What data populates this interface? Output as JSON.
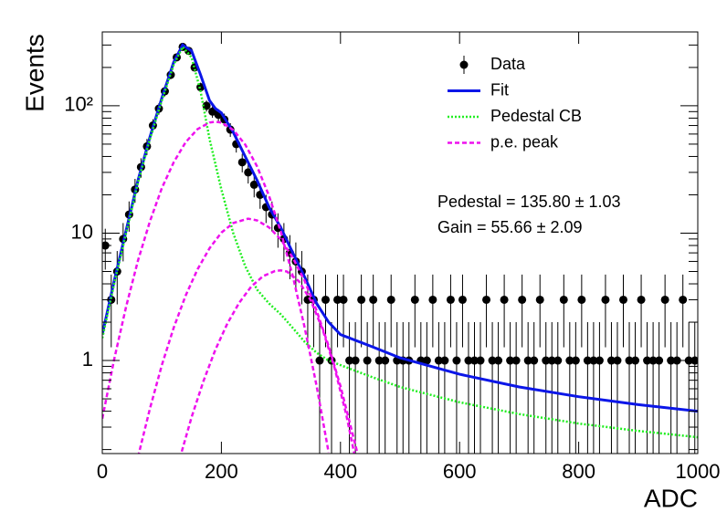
{
  "chart_data": {
    "type": "line",
    "x_label": "ADC",
    "y_label": "Events",
    "xlim": [
      0,
      1000
    ],
    "xticks": [
      0,
      200,
      400,
      600,
      800,
      1000
    ],
    "ylim": [
      0.186,
      380
    ],
    "log_y": true,
    "yticks": [
      1,
      10,
      {
        "value": 100,
        "label": "10²"
      }
    ],
    "yminorticks": [
      0.2,
      0.3,
      0.4,
      0.5,
      0.6,
      0.7,
      0.8,
      0.9,
      2,
      3,
      4,
      5,
      6,
      7,
      8,
      9,
      20,
      30,
      40,
      50,
      60,
      70,
      80,
      90,
      200,
      300
    ],
    "legend_position": "upper right",
    "annotations": [
      "Pedestal = 135.80 ± 1.03",
      "Gain = 55.66 ± 2.09"
    ],
    "series": [
      {
        "name": "Data",
        "color": "#000000",
        "style": "points",
        "x": [
          5,
          15,
          25,
          35,
          45,
          55,
          65,
          75,
          85,
          95,
          105,
          115,
          125,
          135,
          145,
          155,
          165,
          175,
          185,
          195,
          205,
          215,
          225,
          235,
          245,
          255,
          265,
          275,
          285,
          295,
          305,
          315,
          325,
          335,
          345,
          355,
          365,
          375,
          385,
          395,
          405,
          415,
          425,
          435,
          445,
          455,
          465,
          475,
          485,
          495,
          505,
          515,
          525,
          535,
          545,
          555,
          565,
          575,
          585,
          595,
          605,
          615,
          625,
          635,
          645,
          655,
          665,
          675,
          685,
          695,
          705,
          715,
          725,
          735,
          745,
          755,
          765,
          775,
          785,
          795,
          805,
          815,
          825,
          835,
          845,
          855,
          865,
          875,
          885,
          895,
          905,
          915,
          925,
          935,
          945,
          955,
          965,
          975,
          985,
          995
        ],
        "values": [
          8,
          3,
          5,
          9,
          14,
          22,
          33,
          48,
          70,
          95,
          130,
          175,
          240,
          290,
          270,
          200,
          140,
          100,
          90,
          85,
          78,
          65,
          50,
          36,
          30,
          24,
          20,
          16,
          14,
          11,
          9,
          7,
          6,
          5,
          3,
          3,
          1,
          3,
          1,
          3,
          3,
          1,
          1,
          3,
          1,
          3,
          1,
          1,
          3,
          1,
          1,
          1,
          3,
          1,
          1,
          3,
          1,
          1,
          3,
          1,
          3,
          1,
          1,
          1,
          3,
          1,
          1,
          3,
          1,
          1,
          3,
          1,
          1,
          3,
          1,
          1,
          1,
          3,
          1,
          1,
          3,
          1,
          1,
          1,
          3,
          1,
          1,
          3,
          1,
          1,
          3,
          1,
          1,
          1,
          3,
          1,
          1,
          3,
          1,
          1
        ],
        "errors": [
          2.83,
          1.73,
          2.24,
          3,
          3.74,
          4.69,
          5.74,
          6.93,
          8.37,
          9.75,
          11.4,
          13.23,
          15.49,
          17.03,
          16.43,
          14.14,
          11.83,
          10,
          9.49,
          9.22,
          8.83,
          8.06,
          7.07,
          6,
          5.48,
          4.9,
          4.47,
          4,
          3.74,
          3.32,
          3,
          2.65,
          2.45,
          2.24,
          1.73,
          1.73,
          1,
          1.73,
          1,
          1.73,
          1.73,
          1,
          1,
          1.73,
          1,
          1.73,
          1,
          1,
          1.73,
          1,
          1,
          1,
          1.73,
          1,
          1,
          1.73,
          1,
          1,
          1.73,
          1,
          1.73,
          1,
          1,
          1,
          1.73,
          1,
          1,
          1.73,
          1,
          1,
          1.73,
          1,
          1,
          1.73,
          1,
          1,
          1,
          1.73,
          1,
          1,
          1.73,
          1,
          1,
          1,
          1.73,
          1,
          1,
          1.73,
          1,
          1,
          1.73,
          1,
          1,
          1,
          1.73,
          1,
          1,
          1.73,
          1,
          1
        ]
      },
      {
        "name": "Fit",
        "color": "#0b16e8",
        "style": "solid",
        "x": [
          0,
          20,
          40,
          60,
          80,
          100,
          120,
          135,
          150,
          165,
          180,
          190,
          200,
          220,
          240,
          260,
          280,
          300,
          320,
          340,
          360,
          380,
          400,
          450,
          500,
          600,
          700,
          800,
          900,
          1000
        ],
        "values": [
          1.6,
          4.2,
          10.5,
          26,
          57,
          115,
          220,
          300,
          270,
          175,
          110,
          95,
          88,
          62,
          40,
          26,
          16,
          11,
          7,
          4.5,
          2.8,
          2.0,
          1.6,
          1.3,
          1.05,
          0.78,
          0.62,
          0.52,
          0.45,
          0.4
        ]
      },
      {
        "name": "Pedestal CB",
        "color": "#22ee22",
        "style": "dotted",
        "x": [
          0,
          20,
          40,
          60,
          80,
          100,
          120,
          135,
          150,
          165,
          180,
          200,
          220,
          240,
          260,
          280,
          300,
          320,
          340,
          360,
          380,
          400,
          450,
          500,
          600,
          700,
          800,
          900,
          1000
        ],
        "values": [
          1.5,
          4,
          10,
          25,
          55,
          110,
          210,
          290,
          240,
          130,
          55,
          22,
          10,
          5.5,
          3.6,
          2.8,
          2.3,
          1.8,
          1.4,
          1.15,
          1.0,
          0.92,
          0.75,
          0.62,
          0.47,
          0.38,
          0.32,
          0.28,
          0.25
        ]
      },
      {
        "name": "p.e. peak",
        "color": "#ee11ee",
        "style": "dashed",
        "components": [
          {
            "x": [
              0,
              20,
              40,
              60,
              80,
              100,
              120,
              140,
              160,
              180,
              190,
              200,
              220,
              240,
              260,
              280,
              300,
              320,
              340,
              360,
              380
            ],
            "values": [
              0.35,
              1.02,
              2.65,
              6.1,
              12.4,
              22.6,
              36,
              51.8,
              65.6,
              73.9,
              75,
              73.8,
              64.6,
              49.6,
              33.4,
              19.6,
              10.2,
              4.6,
              1.8,
              0.63,
              0.19
            ]
          },
          {
            "x": [
              60,
              80,
              100,
              120,
              140,
              160,
              180,
              200,
              220,
              245,
              260,
              280,
              300,
              320,
              340,
              360,
              380,
              400,
              420,
              430
            ],
            "values": [
              0.175,
              0.42,
              0.92,
              1.81,
              3.24,
              5.2,
              7.6,
              10.1,
              12,
              13,
              12.6,
              11.1,
              8.9,
              6.4,
              4.2,
              2.46,
              1.3,
              0.63,
              0.27,
              0.175
            ]
          },
          {
            "x": [
              130,
              150,
              170,
              190,
              210,
              230,
              250,
              270,
              290,
              300,
              310,
              330,
              350,
              370,
              390,
              410,
              430
            ],
            "values": [
              0.17,
              0.36,
              0.69,
              1.22,
              1.95,
              2.85,
              3.8,
              4.6,
              5.04,
              5.1,
              5,
              4.2,
              2.97,
              1.76,
              0.88,
              0.37,
              0.13
            ]
          }
        ]
      }
    ]
  }
}
